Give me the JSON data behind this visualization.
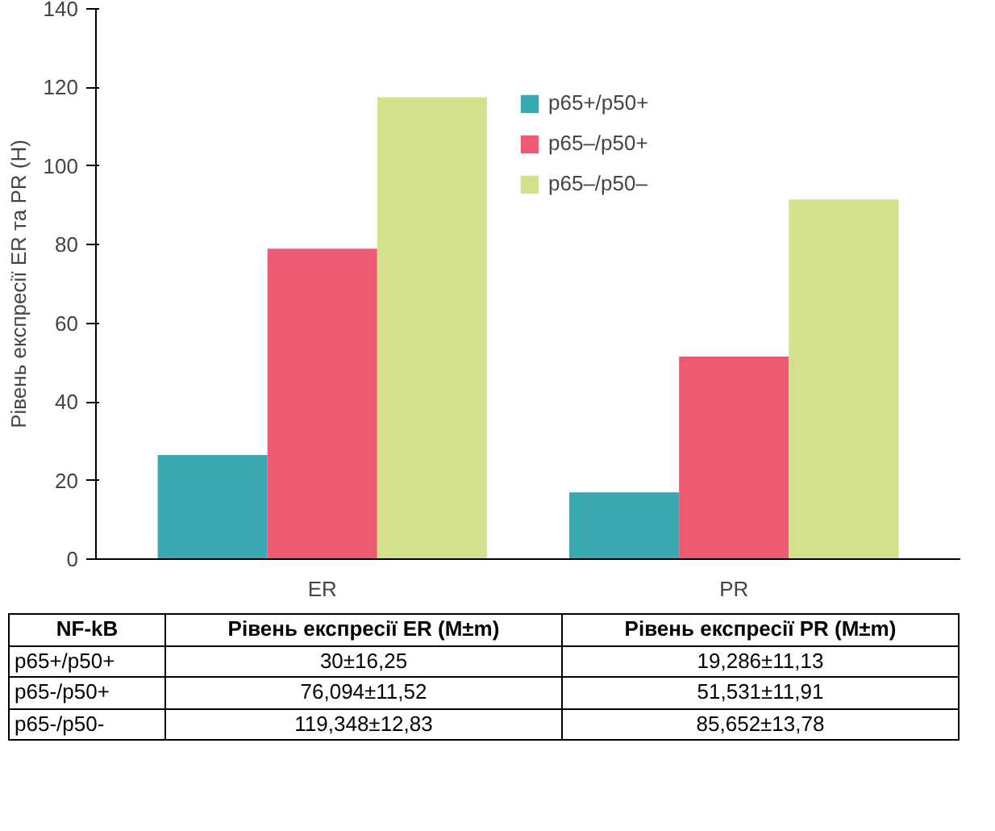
{
  "chart_data": {
    "type": "bar",
    "ylabel": "Рівень експресії ER та PR (H)",
    "categories": [
      "ER",
      "PR"
    ],
    "series": [
      {
        "name": "p65+/p50+",
        "color": "#3aa8b0",
        "values": [
          26.5,
          17
        ]
      },
      {
        "name": "p65–/p50+",
        "color": "#ee5a73",
        "values": [
          79,
          51.5
        ]
      },
      {
        "name": "p65–/p50–",
        "color": "#d4e18a",
        "values": [
          117.5,
          91.5
        ]
      }
    ],
    "ylim": [
      0,
      140
    ],
    "yticks": [
      0,
      20,
      40,
      60,
      80,
      100,
      120,
      140
    ],
    "grid": false,
    "legend": "top",
    "annotations": [
      "NF-kB",
      "Рівень експресії ER (M±m)",
      "Рівень експресії PR (M±m)",
      "p65+/p50+",
      "30±16,25",
      "19,286±11,13",
      "p65-/p50+",
      "76,094±11,52",
      "51,531±11,91",
      "p65-/p50-",
      "119,348±12,83",
      "85,652±13,78"
    ]
  }
}
